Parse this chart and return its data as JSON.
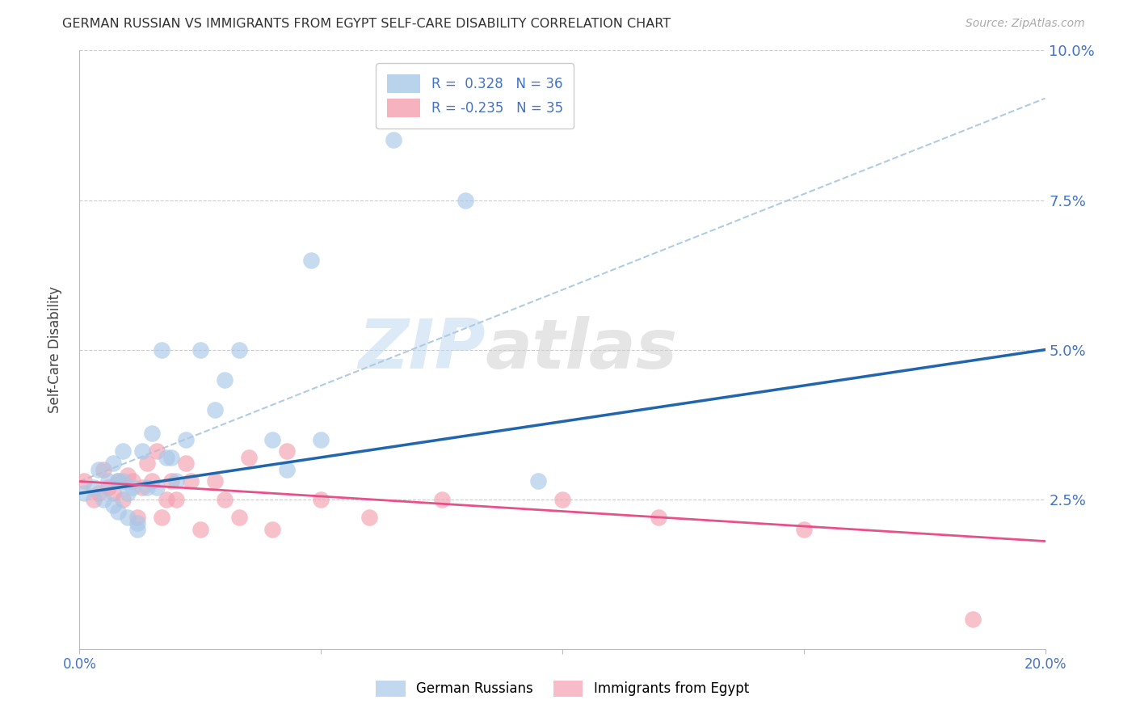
{
  "title": "GERMAN RUSSIAN VS IMMIGRANTS FROM EGYPT SELF-CARE DISABILITY CORRELATION CHART",
  "source": "Source: ZipAtlas.com",
  "ylabel": "Self-Care Disability",
  "xlim": [
    0.0,
    0.2
  ],
  "ylim": [
    0.0,
    0.1
  ],
  "xticks": [
    0.0,
    0.05,
    0.1,
    0.15,
    0.2
  ],
  "xtick_labels": [
    "0.0%",
    "",
    "",
    "",
    "20.0%"
  ],
  "yticks": [
    0.0,
    0.025,
    0.05,
    0.075,
    0.1
  ],
  "ytick_labels": [
    "",
    "2.5%",
    "5.0%",
    "7.5%",
    "10.0%"
  ],
  "blue_color": "#a8c8e8",
  "pink_color": "#f4a0b0",
  "blue_line_color": "#2166ac",
  "pink_line_color": "#e8508a",
  "dashed_line_color": "#b0cce0",
  "axis_color": "#4472c4",
  "grid_color": "#cccccc",
  "background_color": "#ffffff",
  "watermark_zip": "ZIP",
  "watermark_atlas": "atlas",
  "blue_scatter_x": [
    0.001,
    0.003,
    0.004,
    0.005,
    0.006,
    0.007,
    0.007,
    0.008,
    0.008,
    0.009,
    0.009,
    0.01,
    0.01,
    0.011,
    0.012,
    0.012,
    0.013,
    0.014,
    0.015,
    0.016,
    0.017,
    0.018,
    0.019,
    0.02,
    0.022,
    0.025,
    0.028,
    0.03,
    0.033,
    0.04,
    0.043,
    0.048,
    0.05,
    0.065,
    0.08,
    0.095
  ],
  "blue_scatter_y": [
    0.026,
    0.027,
    0.03,
    0.025,
    0.028,
    0.024,
    0.031,
    0.023,
    0.028,
    0.028,
    0.033,
    0.022,
    0.026,
    0.027,
    0.021,
    0.02,
    0.033,
    0.027,
    0.036,
    0.027,
    0.05,
    0.032,
    0.032,
    0.028,
    0.035,
    0.05,
    0.04,
    0.045,
    0.05,
    0.035,
    0.03,
    0.065,
    0.035,
    0.085,
    0.075,
    0.028
  ],
  "pink_scatter_x": [
    0.001,
    0.003,
    0.004,
    0.005,
    0.006,
    0.007,
    0.008,
    0.009,
    0.01,
    0.011,
    0.012,
    0.013,
    0.014,
    0.015,
    0.016,
    0.017,
    0.018,
    0.019,
    0.02,
    0.022,
    0.023,
    0.025,
    0.028,
    0.03,
    0.033,
    0.035,
    0.04,
    0.043,
    0.05,
    0.06,
    0.075,
    0.1,
    0.12,
    0.15,
    0.185
  ],
  "pink_scatter_y": [
    0.028,
    0.025,
    0.026,
    0.03,
    0.027,
    0.026,
    0.028,
    0.025,
    0.029,
    0.028,
    0.022,
    0.027,
    0.031,
    0.028,
    0.033,
    0.022,
    0.025,
    0.028,
    0.025,
    0.031,
    0.028,
    0.02,
    0.028,
    0.025,
    0.022,
    0.032,
    0.02,
    0.033,
    0.025,
    0.022,
    0.025,
    0.025,
    0.022,
    0.02,
    0.005
  ],
  "blue_trend_y_start": 0.026,
  "blue_trend_y_end": 0.05,
  "pink_trend_y_start": 0.028,
  "pink_trend_y_end": 0.018,
  "dashed_trend_y_start": 0.028,
  "dashed_trend_y_end": 0.092
}
